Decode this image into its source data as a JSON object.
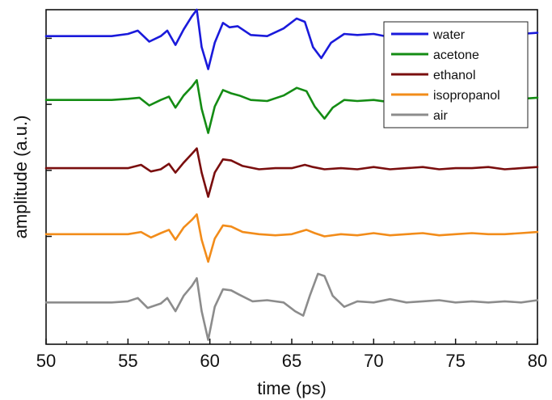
{
  "chart_data": {
    "type": "line",
    "title": "",
    "xlabel": "time (ps)",
    "ylabel": "amplitude (a.u.)",
    "xlim": [
      50,
      80
    ],
    "ylim": [
      -1.9,
      13.3
    ],
    "x_ticks": [
      50,
      55,
      60,
      65,
      70,
      75,
      80
    ],
    "x_tick_labels": [
      "50",
      "55",
      "60",
      "65",
      "70",
      "75",
      "80"
    ],
    "y_ticks": [
      0,
      3,
      6,
      9,
      12
    ],
    "grid": false,
    "legend_position": "top-right",
    "series": [
      {
        "name": "water",
        "color": "#1a1adb",
        "x": [
          50,
          54,
          55,
          55.6,
          56.3,
          57,
          57.4,
          57.9,
          58.4,
          58.9,
          59.2,
          59.5,
          59.9,
          60.3,
          60.8,
          61.2,
          61.7,
          62.5,
          63.5,
          64.5,
          65.3,
          65.8,
          66.3,
          66.8,
          67.4,
          68.2,
          69,
          70,
          71,
          72,
          73,
          74,
          75,
          76,
          77,
          78,
          79,
          80
        ],
        "y": [
          12.1,
          12.1,
          12.2,
          12.35,
          11.85,
          12.1,
          12.35,
          11.7,
          12.4,
          13.0,
          13.3,
          11.6,
          10.6,
          11.8,
          12.7,
          12.5,
          12.55,
          12.15,
          12.1,
          12.45,
          12.9,
          12.75,
          11.6,
          11.1,
          11.8,
          12.2,
          12.15,
          12.2,
          12.05,
          12.25,
          12.1,
          12.2,
          12.15,
          12.2,
          12.1,
          12.2,
          12.2,
          12.25
        ]
      },
      {
        "name": "acetone",
        "color": "#148c14",
        "x": [
          50,
          54,
          55,
          55.7,
          56.3,
          57,
          57.5,
          57.9,
          58.4,
          58.9,
          59.2,
          59.5,
          59.9,
          60.3,
          60.8,
          61.3,
          61.8,
          62.5,
          63.5,
          64.5,
          65.3,
          65.9,
          66.4,
          67,
          67.5,
          68.2,
          69,
          70,
          71,
          72,
          73,
          74,
          75,
          76,
          77,
          78,
          79,
          80
        ],
        "y": [
          9.2,
          9.2,
          9.25,
          9.3,
          8.95,
          9.2,
          9.35,
          8.85,
          9.4,
          9.8,
          10.1,
          8.8,
          7.7,
          8.9,
          9.65,
          9.5,
          9.4,
          9.2,
          9.15,
          9.4,
          9.75,
          9.6,
          8.9,
          8.35,
          8.85,
          9.2,
          9.15,
          9.2,
          9.1,
          9.25,
          9.15,
          9.2,
          9.15,
          9.25,
          9.15,
          9.2,
          9.25,
          9.3
        ]
      },
      {
        "name": "ethanol",
        "color": "#7a0e0e",
        "x": [
          50,
          54,
          55,
          55.8,
          56.4,
          57,
          57.5,
          57.9,
          58.4,
          58.9,
          59.2,
          59.5,
          59.9,
          60.3,
          60.8,
          61.3,
          62,
          63,
          64,
          65,
          65.8,
          66.3,
          67,
          68,
          69,
          70,
          71,
          72,
          73,
          74,
          75,
          76,
          77,
          78,
          79,
          80
        ],
        "y": [
          6.1,
          6.1,
          6.1,
          6.25,
          5.95,
          6.05,
          6.3,
          5.9,
          6.35,
          6.75,
          7.0,
          5.9,
          4.8,
          5.9,
          6.5,
          6.45,
          6.2,
          6.05,
          6.1,
          6.1,
          6.25,
          6.15,
          6.05,
          6.1,
          6.05,
          6.15,
          6.05,
          6.1,
          6.15,
          6.05,
          6.1,
          6.1,
          6.15,
          6.05,
          6.1,
          6.15
        ]
      },
      {
        "name": "isopropanol",
        "color": "#f28c1a",
        "x": [
          50,
          54,
          55,
          55.8,
          56.4,
          57,
          57.5,
          57.9,
          58.4,
          58.9,
          59.2,
          59.5,
          59.9,
          60.3,
          60.8,
          61.3,
          62,
          63,
          64,
          65,
          65.9,
          66.4,
          67,
          68,
          69,
          70,
          71,
          72,
          73,
          74,
          75,
          76,
          77,
          78,
          79,
          80
        ],
        "y": [
          3.1,
          3.1,
          3.1,
          3.2,
          2.95,
          3.15,
          3.3,
          2.85,
          3.4,
          3.75,
          4.0,
          2.85,
          1.85,
          2.9,
          3.5,
          3.45,
          3.2,
          3.1,
          3.05,
          3.1,
          3.3,
          3.15,
          3.0,
          3.1,
          3.05,
          3.15,
          3.05,
          3.1,
          3.15,
          3.05,
          3.1,
          3.15,
          3.1,
          3.1,
          3.15,
          3.2
        ]
      },
      {
        "name": "air",
        "color": "#8c8c8c",
        "x": [
          50,
          54,
          55,
          55.6,
          56.2,
          57,
          57.4,
          57.9,
          58.4,
          58.9,
          59.2,
          59.5,
          59.9,
          60.3,
          60.8,
          61.3,
          61.8,
          62.6,
          63.5,
          64.5,
          65.2,
          65.7,
          66.1,
          66.6,
          67,
          67.5,
          68.2,
          69,
          70,
          71,
          72,
          73,
          74,
          75,
          76,
          77,
          78,
          79,
          80
        ],
        "y": [
          0,
          0,
          0.05,
          0.2,
          -0.25,
          -0.05,
          0.2,
          -0.4,
          0.3,
          0.75,
          1.1,
          -0.4,
          -1.7,
          -0.2,
          0.6,
          0.55,
          0.35,
          0.05,
          0.1,
          0.0,
          -0.4,
          -0.6,
          0.3,
          1.3,
          1.2,
          0.3,
          -0.2,
          0.05,
          0.0,
          0.15,
          0.0,
          0.05,
          0.1,
          0.0,
          0.05,
          0.0,
          0.05,
          0.0,
          0.1
        ]
      }
    ]
  }
}
